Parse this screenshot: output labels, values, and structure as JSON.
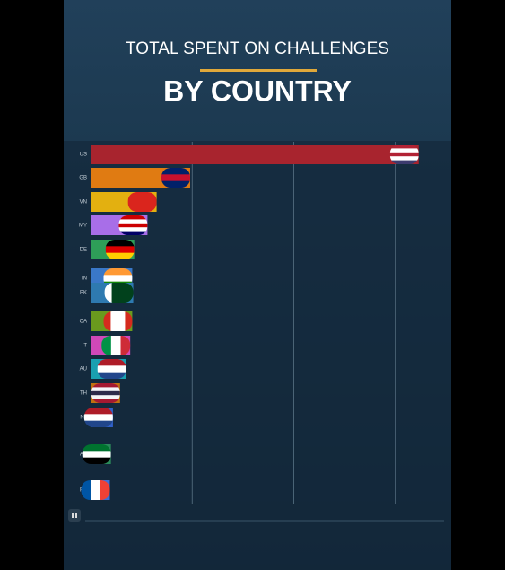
{
  "chart_data": {
    "type": "bar",
    "orientation": "horizontal",
    "title": "TOTAL SPENT ON CHALLENGES",
    "subtitle": "BY COUNTRY",
    "categories": [
      "US",
      "GB",
      "VN",
      "MY",
      "DE",
      "IN",
      "PK",
      "CA",
      "IT",
      "AU",
      "TH",
      "NL",
      "AE",
      "FR"
    ],
    "values": [
      3.23,
      0.98,
      0.65,
      0.56,
      0.43,
      0.41,
      0.42,
      0.41,
      0.39,
      0.35,
      0.29,
      0.22,
      0.2,
      0.19
    ],
    "colors": [
      "#a8242e",
      "#e07b12",
      "#e3b010",
      "#a86ee8",
      "#2e9e58",
      "#3a78c8",
      "#2e7ab0",
      "#6a9a1e",
      "#d048b8",
      "#1aa0b0",
      "#c07010",
      "#3060c8",
      "#2a8a5a",
      "#3a70d8"
    ],
    "xlim": [
      0,
      3.55
    ],
    "xticks": [
      1,
      2,
      3
    ],
    "grid": true
  }
}
